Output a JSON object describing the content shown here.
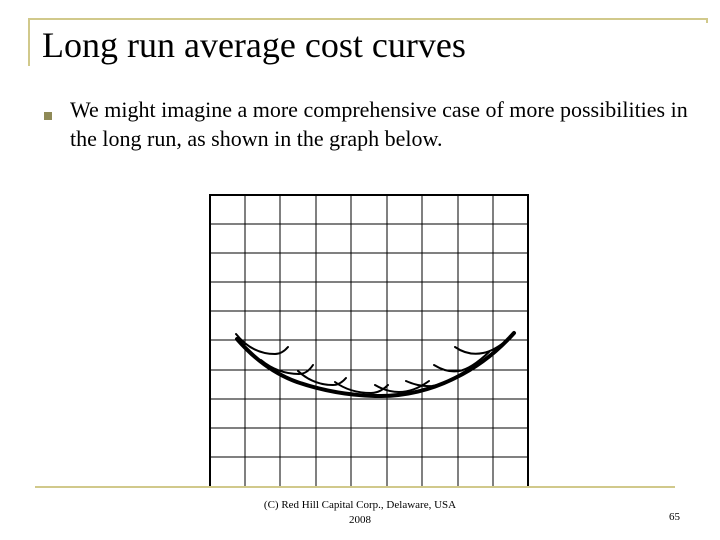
{
  "slide": {
    "title": "Long run average cost curves",
    "bullet_text": "We might imagine a more comprehensive case of more possibilities in the long run, as shown in the graph below.",
    "footer_line_1": "(C) Red Hill Capital Corp., Delaware, USA",
    "footer_line_2": "2008",
    "page_number": "65",
    "colors": {
      "accent_line": "#d1c98b",
      "bullet": "#8f8a57",
      "text": "#000000"
    }
  },
  "graph": {
    "grid_columns": 9,
    "grid_rows": 10,
    "labels": []
  }
}
